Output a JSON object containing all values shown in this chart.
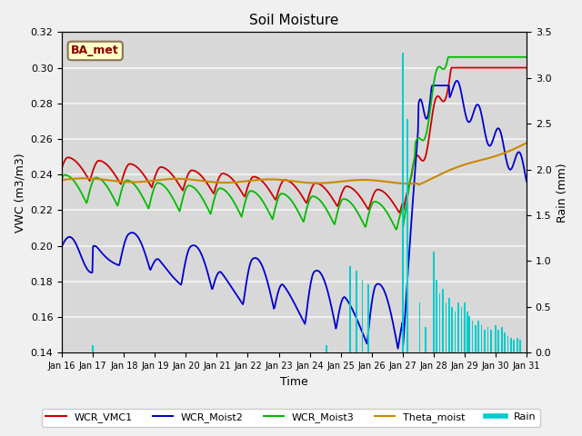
{
  "title": "Soil Moisture",
  "xlabel": "Time",
  "ylabel_left": "VWC (m3/m3)",
  "ylabel_right": "Rain (mm)",
  "ylim_left": [
    0.14,
    0.32
  ],
  "ylim_right": [
    0.0,
    3.5
  ],
  "background_color": "#f0f0f0",
  "plot_bg_color": "#d8d8d8",
  "grid_color": "#f0f0f0",
  "annotation_text": "BA_met",
  "annotation_box_color": "#ffffc8",
  "annotation_box_edge": "#8b7355",
  "colors": {
    "WCR_VMC1": "#cc0000",
    "WCR_Moist2": "#0000cc",
    "WCR_Moist3": "#00bb00",
    "Theta_moist": "#cc8800",
    "Rain": "#00cccc"
  },
  "x_tick_labels": [
    "Jan 16",
    "Jan 17",
    "Jan 18",
    "Jan 19",
    "Jan 20",
    "Jan 21",
    "Jan 22",
    "Jan 23",
    "Jan 24",
    "Jan 25",
    "Jan 26",
    "Jan 27",
    "Jan 28",
    "Jan 29",
    "Jan 30",
    "Jan 31"
  ],
  "x_tick_positions": [
    0,
    1,
    2,
    3,
    4,
    5,
    6,
    7,
    8,
    9,
    10,
    11,
    12,
    13,
    14,
    15
  ],
  "yticks_left": [
    0.14,
    0.16,
    0.18,
    0.2,
    0.22,
    0.24,
    0.26,
    0.28,
    0.3,
    0.32
  ],
  "yticks_right": [
    0.0,
    0.5,
    1.0,
    1.5,
    2.0,
    2.5,
    3.0,
    3.5
  ]
}
